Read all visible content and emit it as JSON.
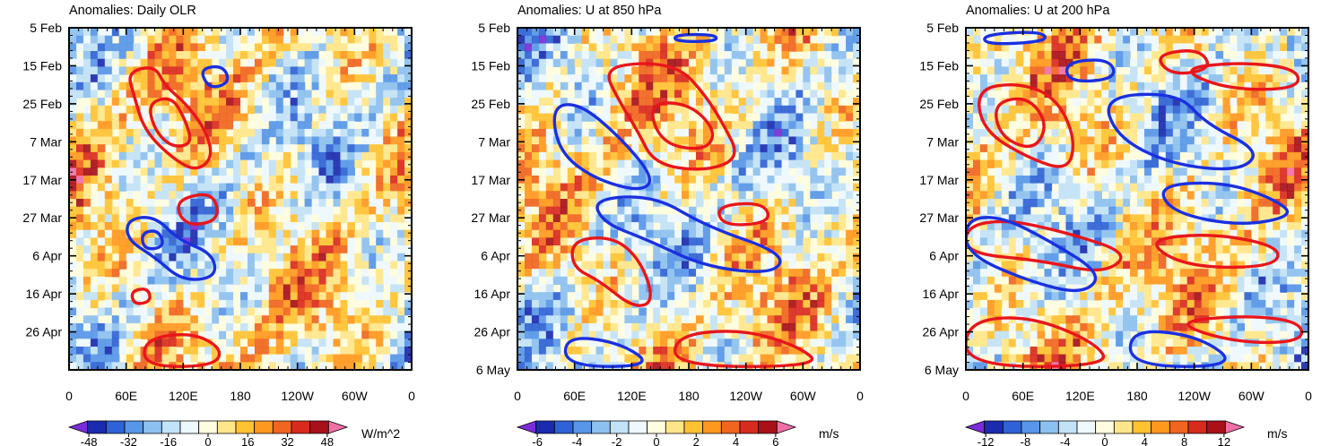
{
  "chart_data": [
    {
      "type": "heatmap",
      "title": "Anomalies: Daily OLR",
      "xlabel": "",
      "ylabel": "",
      "x_ticks": [
        "0",
        "60E",
        "120E",
        "180",
        "120W",
        "60W",
        "0"
      ],
      "y_ticks": [
        "5 Feb",
        "15 Feb",
        "25 Feb",
        "7 Mar",
        "17 Mar",
        "27 Mar",
        "6 Apr",
        "16 Apr",
        "26 Apr"
      ],
      "y_range": [
        "5 Feb",
        "6 May"
      ],
      "colorbar_ticks": [
        "-48",
        "-32",
        "-16",
        "0",
        "16",
        "32",
        "48"
      ],
      "colorbar_range": [
        -56,
        56
      ],
      "units": "W/m^2",
      "contour_colors": {
        "positive": "#e8161b",
        "negative": "#1a30e0"
      }
    },
    {
      "type": "heatmap",
      "title": "Anomalies: U at 850 hPa",
      "xlabel": "",
      "ylabel": "",
      "x_ticks": [
        "0",
        "60E",
        "120E",
        "180",
        "120W",
        "60W",
        "0"
      ],
      "y_ticks": [
        "5 Feb",
        "15 Feb",
        "25 Feb",
        "7 Mar",
        "17 Mar",
        "27 Mar",
        "6 Apr",
        "16 Apr",
        "26 Apr",
        "6 May"
      ],
      "y_range": [
        "5 Feb",
        "6 May"
      ],
      "colorbar_ticks": [
        "-6",
        "-4",
        "-2",
        "0",
        "2",
        "4",
        "6"
      ],
      "colorbar_range": [
        -7,
        7
      ],
      "units": "m/s",
      "contour_colors": {
        "positive": "#e8161b",
        "negative": "#1a30e0"
      }
    },
    {
      "type": "heatmap",
      "title": "Anomalies: U at 200 hPa",
      "xlabel": "",
      "ylabel": "",
      "x_ticks": [
        "0",
        "60E",
        "120E",
        "180",
        "120W",
        "60W",
        "0"
      ],
      "y_ticks": [
        "5 Feb",
        "15 Feb",
        "25 Feb",
        "7 Mar",
        "17 Mar",
        "27 Mar",
        "6 Apr",
        "16 Apr",
        "26 Apr",
        "6 May"
      ],
      "y_range": [
        "5 Feb",
        "6 May"
      ],
      "colorbar_ticks": [
        "-12",
        "-8",
        "-4",
        "0",
        "4",
        "8",
        "12"
      ],
      "colorbar_range": [
        -14,
        14
      ],
      "units": "m/s",
      "contour_colors": {
        "positive": "#e8161b",
        "negative": "#1a30e0"
      }
    }
  ],
  "colormap": [
    "#7a2cd6",
    "#1b2bb0",
    "#2f62d6",
    "#5796e8",
    "#8cc0f0",
    "#c2e2f8",
    "#eef8ff",
    "#fffde0",
    "#ffe68a",
    "#ffc233",
    "#ff9820",
    "#f06520",
    "#d92a1e",
    "#a8101a",
    "#ef6fa6"
  ]
}
